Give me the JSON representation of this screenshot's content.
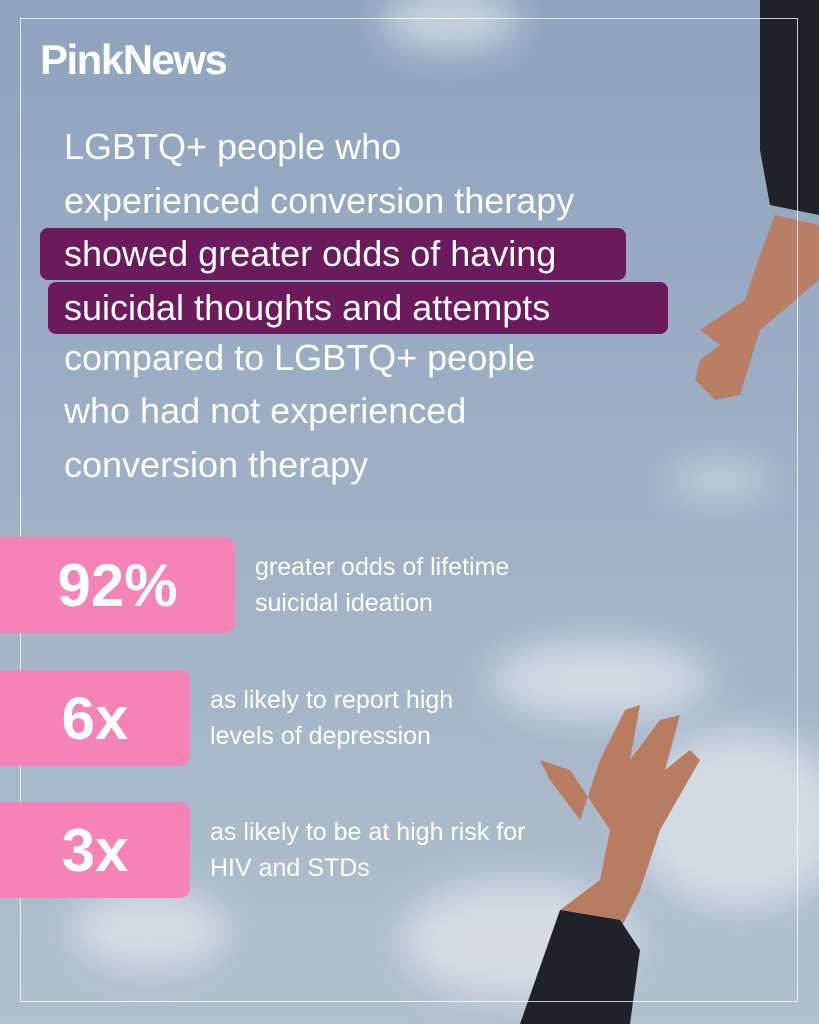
{
  "logo": "PinkNews",
  "headline": {
    "lines": [
      "LGBTQ+ people who",
      "experienced conversion therapy",
      "showed greater odds of having",
      "suicidal thoughts and attempts",
      "compared to LGBTQ+ people",
      "who had not experienced",
      "conversion therapy"
    ]
  },
  "stats": [
    {
      "value": "92%",
      "description": "greater odds of lifetime suicidal ideation"
    },
    {
      "value": "6x",
      "description": "as likely to report high levels of depression"
    },
    {
      "value": "3x",
      "description": "as likely to be at high risk for HIV and STDs"
    }
  ]
}
